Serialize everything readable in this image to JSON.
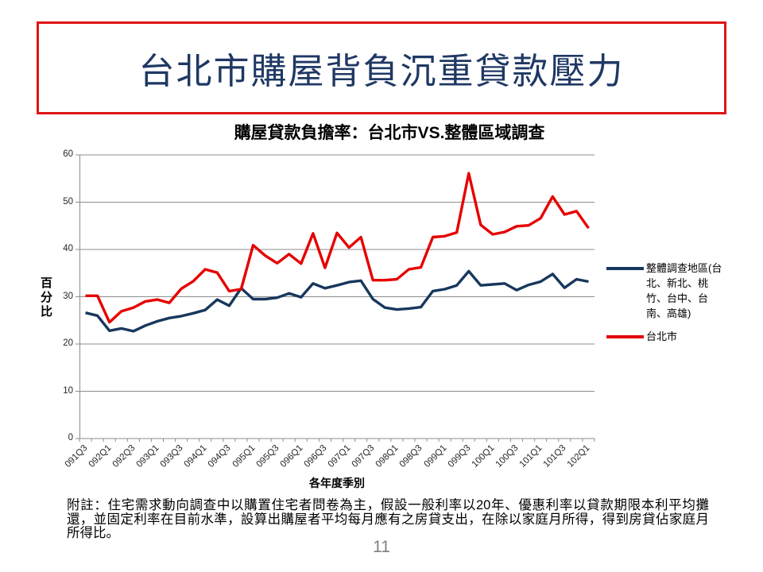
{
  "slide": {
    "title": "台北市購屋背負沉重貸款壓力",
    "title_text_color": "#1f3864",
    "title_border_color": "#e01414",
    "page_number": "11"
  },
  "chart": {
    "title": "購屋貸款負擔率：台北市VS.整體區域調查",
    "y_axis_title": "百分比",
    "x_axis_title": "各年度季別"
  },
  "footnote": "附註：住宅需求動向調查中以購置住宅者問卷為主，假設一般利率以20年、優惠利率以貸款期限本利平均攤還，並固定利率在目前水準，設算出購屋者平均每月應有之房貸支出，在除以家庭月所得，得到房貸佔家庭月所得比。",
  "chart_data": {
    "type": "line",
    "title": "購屋貸款負擔率：台北市VS.整體區域調查",
    "xlabel": "各年度季別",
    "ylabel": "百分比",
    "ylim": [
      0,
      60
    ],
    "yticks": [
      0,
      10,
      20,
      30,
      40,
      50,
      60
    ],
    "grid": true,
    "legend_position": "right",
    "x_label_step": 2,
    "axis_color": "#8c8c8c",
    "categories": [
      "091Q3",
      "091Q4",
      "092Q1",
      "092Q2",
      "092Q3",
      "092Q4",
      "093Q1",
      "093Q2",
      "093Q3",
      "093Q4",
      "094Q1",
      "094Q2",
      "094Q3",
      "094Q4",
      "095Q1",
      "095Q2",
      "095Q3",
      "095Q4",
      "096Q1",
      "096Q2",
      "096Q3",
      "096Q4",
      "097Q1",
      "097Q2",
      "097Q3",
      "097Q4",
      "098Q1",
      "098Q2",
      "098Q3",
      "098Q4",
      "099Q1",
      "099Q2",
      "099Q3",
      "099Q4",
      "100Q1",
      "100Q2",
      "100Q3",
      "100Q4",
      "101Q1",
      "101Q2",
      "101Q3",
      "101Q4",
      "102Q1"
    ],
    "series": [
      {
        "id": "overall-region",
        "name": "整體調查地區(台北、新北、桃竹、台中、台南、高雄)",
        "color": "#17375d",
        "values": [
          26.6,
          26.0,
          22.8,
          23.3,
          22.7,
          23.9,
          24.8,
          25.5,
          25.9,
          26.5,
          27.2,
          29.4,
          28.1,
          31.8,
          29.5,
          29.5,
          29.8,
          30.7,
          29.9,
          32.8,
          31.8,
          32.4,
          33.1,
          33.4,
          29.5,
          27.7,
          27.3,
          27.5,
          27.8,
          31.2,
          31.6,
          32.4,
          35.4,
          32.4,
          32.6,
          32.8,
          31.4,
          32.5,
          33.2,
          34.8,
          31.9,
          33.7,
          33.2
        ]
      },
      {
        "id": "taipei-city",
        "name": "台北市",
        "color": "#e60000",
        "values": [
          30.2,
          30.2,
          24.6,
          26.9,
          27.7,
          29.0,
          29.4,
          28.7,
          31.7,
          33.3,
          35.8,
          35.1,
          31.2,
          31.6,
          40.9,
          38.7,
          37.1,
          39.0,
          37.0,
          43.4,
          36.1,
          43.5,
          40.4,
          42.6,
          33.5,
          33.5,
          33.7,
          35.8,
          36.2,
          42.6,
          42.8,
          43.6,
          56.1,
          45.2,
          43.2,
          43.7,
          44.9,
          45.1,
          46.6,
          51.2,
          47.4,
          48.1,
          44.5
        ]
      }
    ]
  }
}
